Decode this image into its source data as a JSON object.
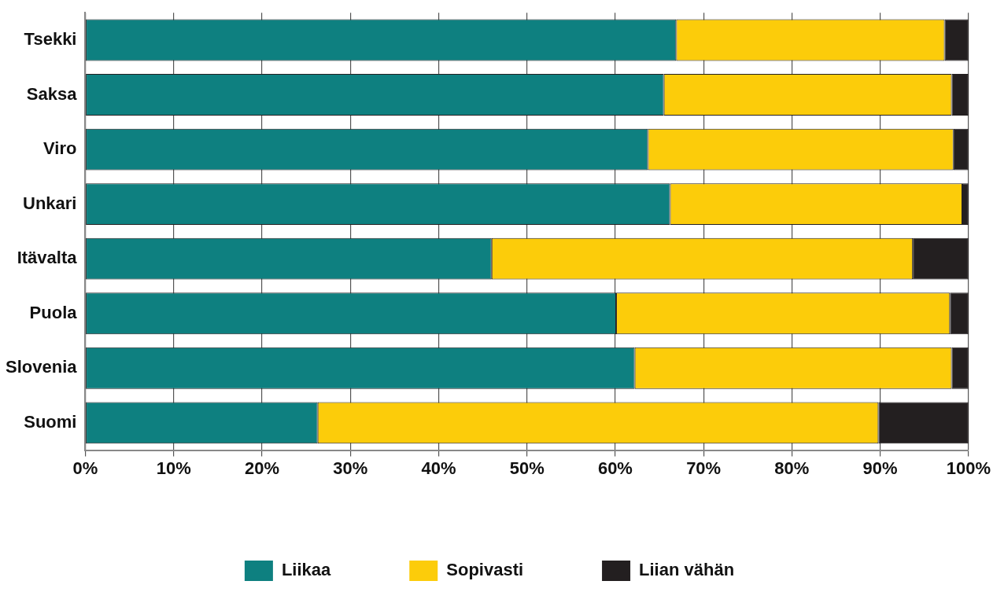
{
  "chart_data": {
    "type": "bar",
    "orientation": "horizontal",
    "stacked": true,
    "categories": [
      "Tsekki",
      "Saksa",
      "Viro",
      "Unkari",
      "Itävalta",
      "Puola",
      "Slovenia",
      "Suomi"
    ],
    "series": [
      {
        "name": "Liikaa",
        "color": "#0e8080",
        "values": [
          66.9,
          65.5,
          63.7,
          66.2,
          46.0,
          60.1,
          62.2,
          26.3
        ]
      },
      {
        "name": "Sopivasti",
        "color": "#fccc0a",
        "values": [
          30.4,
          32.6,
          34.6,
          33.1,
          47.7,
          37.8,
          35.9,
          63.5
        ]
      },
      {
        "name": "Liian vähän",
        "color": "#231f20",
        "values": [
          2.7,
          1.9,
          1.7,
          0.7,
          6.3,
          2.1,
          1.9,
          10.2
        ]
      }
    ],
    "xlim": [
      0,
      100
    ],
    "xticks": [
      {
        "value": 0,
        "label": "0%"
      },
      {
        "value": 10,
        "label": "10%"
      },
      {
        "value": 20,
        "label": "20%"
      },
      {
        "value": 30,
        "label": "30%"
      },
      {
        "value": 40,
        "label": "40%"
      },
      {
        "value": 50,
        "label": "50%"
      },
      {
        "value": 60,
        "label": "60%"
      },
      {
        "value": 70,
        "label": "70%"
      },
      {
        "value": 80,
        "label": "80%"
      },
      {
        "value": 90,
        "label": "90%"
      },
      {
        "value": 100,
        "label": "100%"
      }
    ],
    "grid": "x",
    "legend": "bottom"
  }
}
